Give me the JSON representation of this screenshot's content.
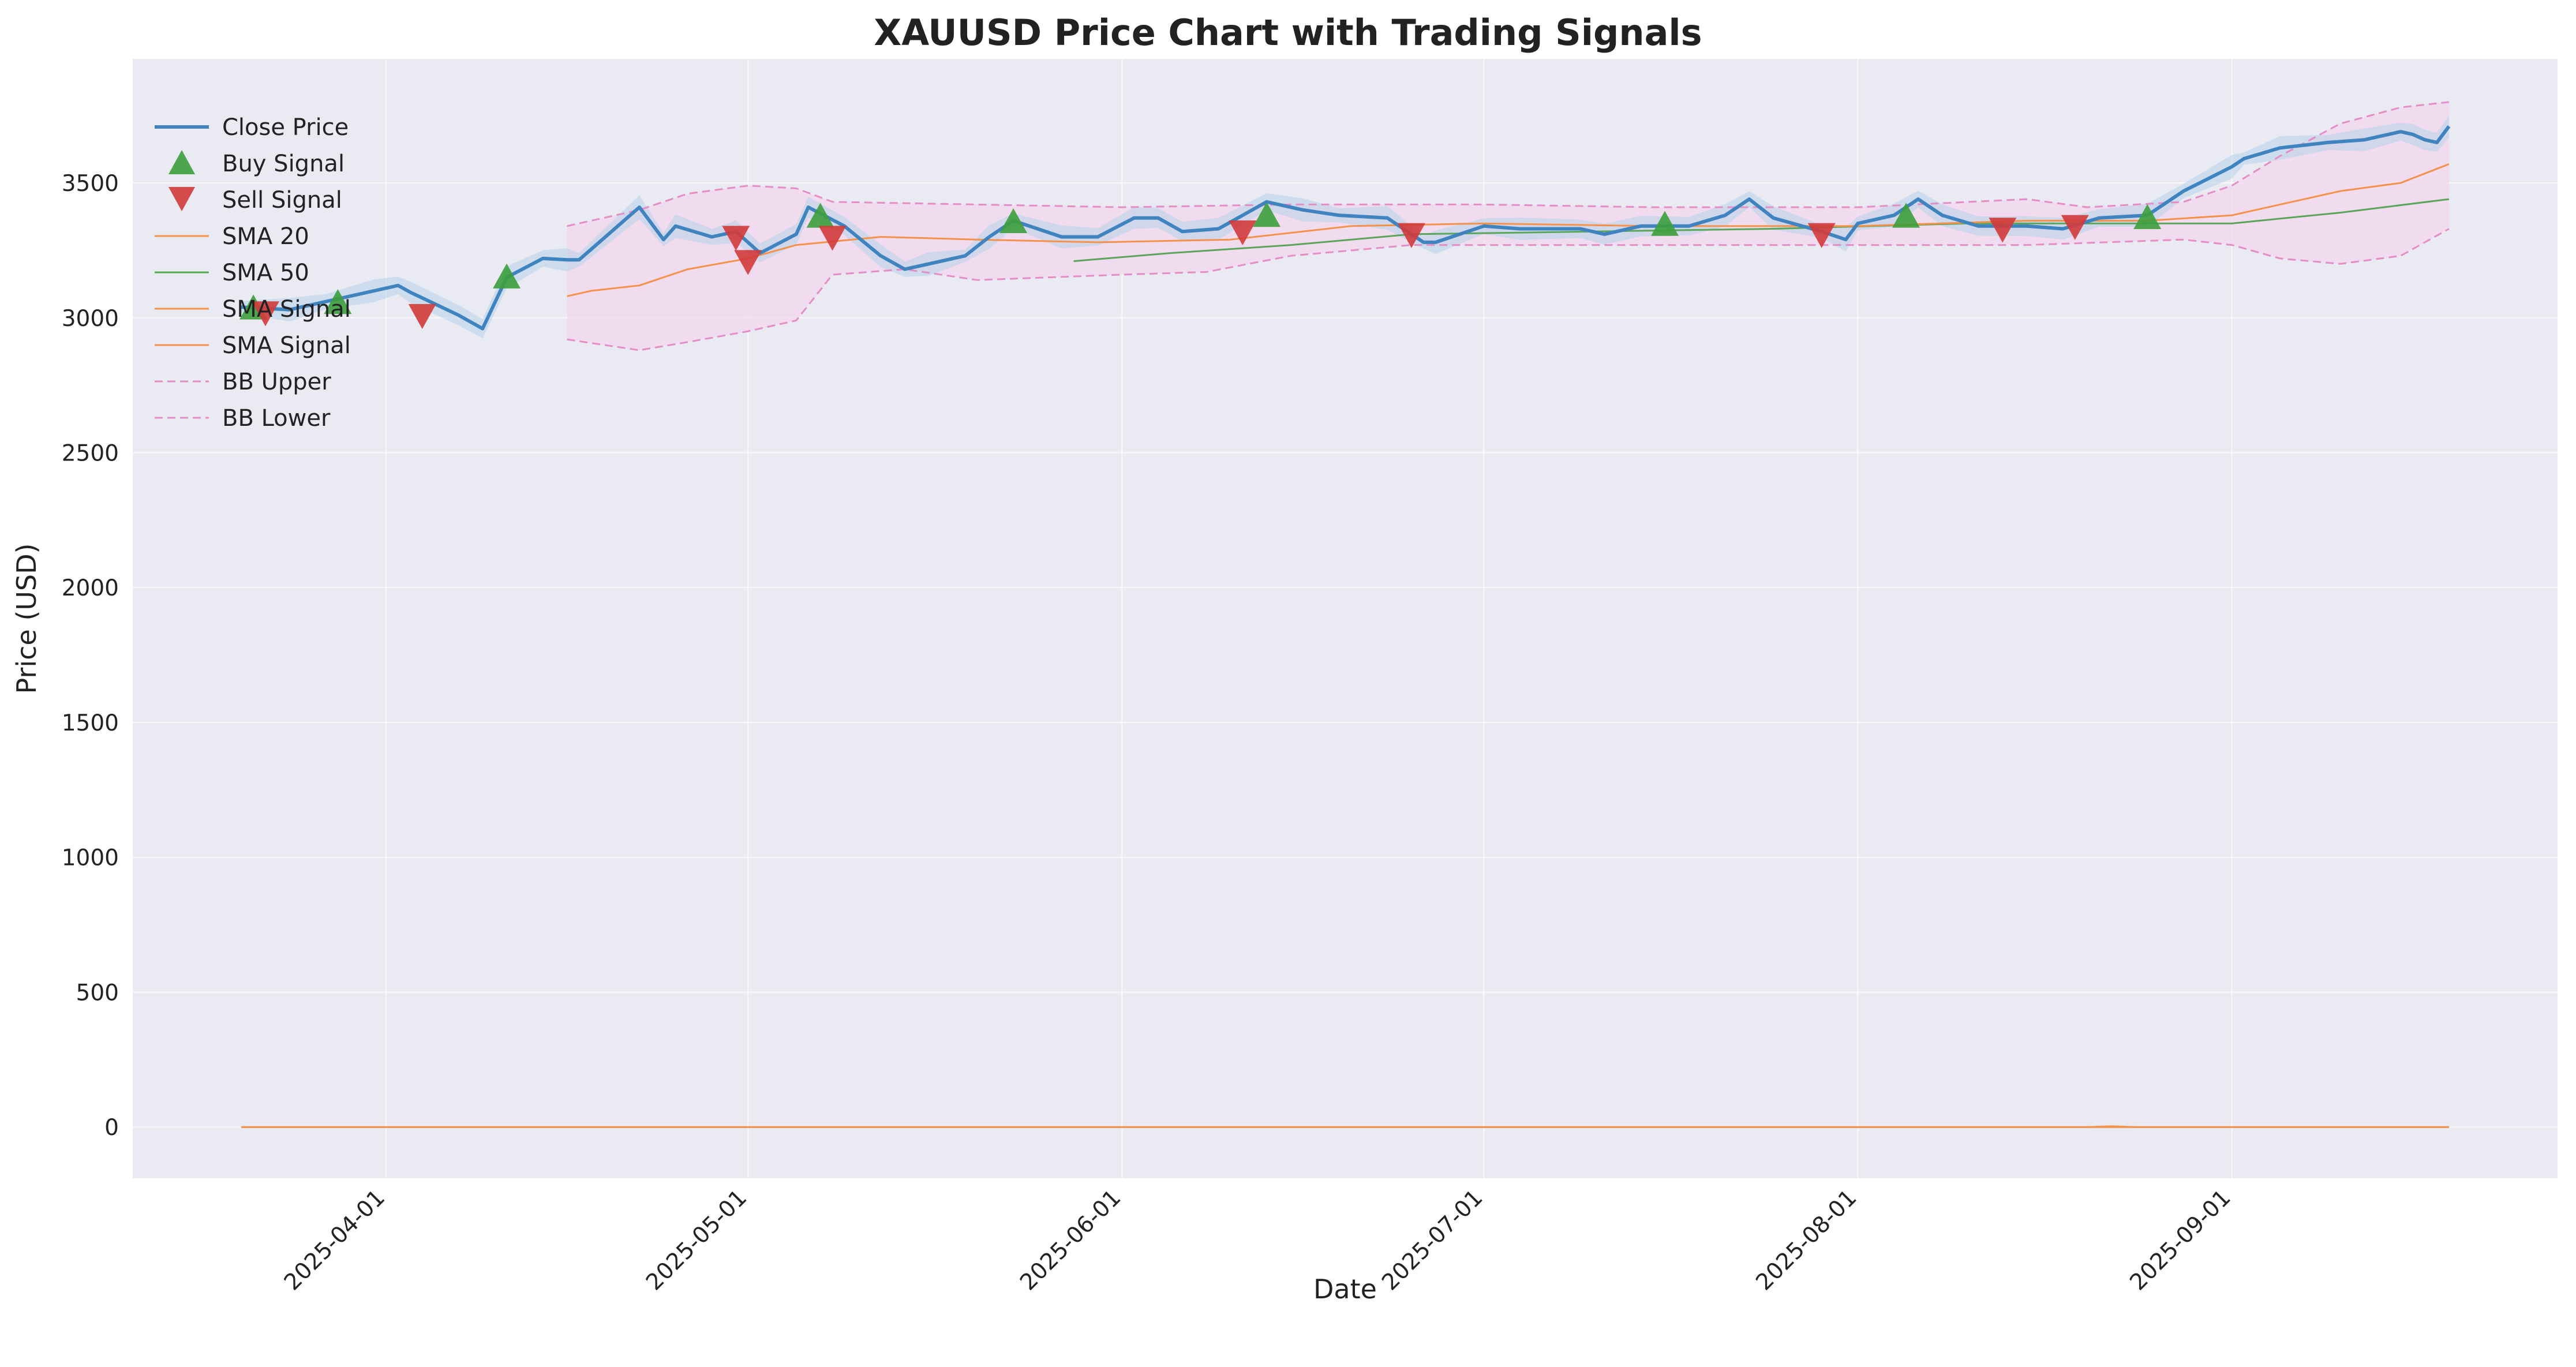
{
  "chart_data": {
    "type": "line",
    "title": "XAUUSD Price Chart with Trading Signals",
    "xlabel": "Date",
    "ylabel": "Price (USD)",
    "xlim": [
      "2025-03-11",
      "2025-09-28"
    ],
    "ylim": [
      -190,
      3960
    ],
    "grid": true,
    "legend_position": "upper-left",
    "x_ticks": [
      "2025-04-01",
      "2025-05-01",
      "2025-06-01",
      "2025-07-01",
      "2025-08-01",
      "2025-09-01"
    ],
    "y_ticks": [
      0,
      500,
      1000,
      1500,
      2000,
      2500,
      3000,
      3500
    ],
    "colors": {
      "plot_background": "#EAEAF2",
      "grid": "#FFFFFF",
      "close": "#3F83BF",
      "buy": "#3C9E3C",
      "sell": "#D13A3A",
      "sma20": "#F4914A",
      "sma50": "#5AA55A",
      "sma_signal": "#F4914A",
      "bb": "#E38EC7",
      "bb_fill": "#F2D7EC"
    },
    "close": {
      "name": "Close Price",
      "dates": [
        "2025-03-20",
        "2025-03-24",
        "2025-03-27",
        "2025-03-31",
        "2025-04-02",
        "2025-04-03",
        "2025-04-07",
        "2025-04-09",
        "2025-04-11",
        "2025-04-14",
        "2025-04-16",
        "2025-04-17",
        "2025-04-22",
        "2025-04-24",
        "2025-04-25",
        "2025-04-28",
        "2025-04-30",
        "2025-05-02",
        "2025-05-05",
        "2025-05-06",
        "2025-05-09",
        "2025-05-12",
        "2025-05-14",
        "2025-05-16",
        "2025-05-19",
        "2025-05-21",
        "2025-05-23",
        "2025-05-27",
        "2025-05-30",
        "2025-06-02",
        "2025-06-04",
        "2025-06-06",
        "2025-06-09",
        "2025-06-13",
        "2025-06-16",
        "2025-06-19",
        "2025-06-23",
        "2025-06-26",
        "2025-06-27",
        "2025-07-01",
        "2025-07-04",
        "2025-07-09",
        "2025-07-11",
        "2025-07-14",
        "2025-07-18",
        "2025-07-21",
        "2025-07-23",
        "2025-07-25",
        "2025-07-29",
        "2025-07-31",
        "2025-08-01",
        "2025-08-04",
        "2025-08-06",
        "2025-08-08",
        "2025-08-11",
        "2025-08-15",
        "2025-08-18",
        "2025-08-21",
        "2025-08-25",
        "2025-08-28",
        "2025-09-01",
        "2025-09-02",
        "2025-09-05",
        "2025-09-09",
        "2025-09-12",
        "2025-09-15",
        "2025-09-16",
        "2025-09-17",
        "2025-09-18",
        "2025-09-19"
      ],
      "values": [
        3040,
        3030,
        3060,
        3100,
        3120,
        3095,
        3010,
        2960,
        3150,
        3220,
        3215,
        3215,
        3410,
        3290,
        3340,
        3300,
        3320,
        3240,
        3310,
        3410,
        3340,
        3230,
        3180,
        3200,
        3230,
        3300,
        3360,
        3300,
        3300,
        3370,
        3370,
        3320,
        3330,
        3430,
        3400,
        3380,
        3370,
        3280,
        3280,
        3340,
        3330,
        3330,
        3310,
        3340,
        3340,
        3380,
        3440,
        3370,
        3320,
        3290,
        3350,
        3380,
        3440,
        3380,
        3340,
        3340,
        3330,
        3370,
        3380,
        3470,
        3560,
        3590,
        3630,
        3650,
        3660,
        3690,
        3680,
        3660,
        3650,
        3710
      ]
    },
    "buy_signals": {
      "name": "Buy Signal",
      "dates": [
        "2025-03-21",
        "2025-03-28",
        "2025-04-11",
        "2025-05-07",
        "2025-05-23",
        "2025-06-13",
        "2025-07-16",
        "2025-08-05",
        "2025-08-25"
      ],
      "values": [
        3035,
        3055,
        3150,
        3375,
        3355,
        3378,
        3345,
        3375,
        3370
      ]
    },
    "sell_signals": {
      "name": "Sell Signal",
      "dates": [
        "2025-03-22",
        "2025-04-04",
        "2025-04-30",
        "2025-05-01",
        "2025-05-08",
        "2025-06-11",
        "2025-06-25",
        "2025-07-29",
        "2025-08-13",
        "2025-08-19"
      ],
      "values": [
        3020,
        3010,
        3300,
        3210,
        3300,
        3320,
        3310,
        3310,
        3330,
        3340
      ]
    },
    "sma20": {
      "name": "SMA 20",
      "dates": [
        "2025-04-16",
        "2025-04-18",
        "2025-04-22",
        "2025-04-26",
        "2025-05-01",
        "2025-05-05",
        "2025-05-12",
        "2025-05-20",
        "2025-05-30",
        "2025-06-10",
        "2025-06-20",
        "2025-07-01",
        "2025-07-15",
        "2025-08-01",
        "2025-08-15",
        "2025-08-25",
        "2025-09-01",
        "2025-09-10",
        "2025-09-15",
        "2025-09-19"
      ],
      "values": [
        3080,
        3100,
        3120,
        3180,
        3220,
        3270,
        3300,
        3290,
        3280,
        3290,
        3340,
        3350,
        3340,
        3340,
        3360,
        3360,
        3380,
        3470,
        3500,
        3570
      ]
    },
    "sma50": {
      "name": "SMA 50",
      "dates": [
        "2025-05-28",
        "2025-06-05",
        "2025-06-15",
        "2025-06-25",
        "2025-07-10",
        "2025-07-25",
        "2025-08-10",
        "2025-08-25",
        "2025-09-01",
        "2025-09-10",
        "2025-09-19"
      ],
      "values": [
        3210,
        3240,
        3270,
        3310,
        3320,
        3330,
        3350,
        3350,
        3350,
        3390,
        3440
      ]
    },
    "sma_signal": {
      "name": "SMA Signal",
      "dates": [
        "2025-03-20",
        "2025-08-20",
        "2025-08-22",
        "2025-08-24",
        "2025-09-19"
      ],
      "values": [
        0,
        0,
        3,
        0,
        0
      ]
    },
    "sma_signal_2": {
      "name": "SMA Signal",
      "dates": [
        "2025-03-20",
        "2025-09-19"
      ],
      "values": [
        0,
        0
      ]
    },
    "bb_upper": {
      "name": "BB Upper",
      "dates": [
        "2025-04-16",
        "2025-04-22",
        "2025-04-26",
        "2025-05-01",
        "2025-05-05",
        "2025-05-08",
        "2025-05-20",
        "2025-06-01",
        "2025-06-15",
        "2025-07-01",
        "2025-07-15",
        "2025-08-01",
        "2025-08-15",
        "2025-08-20",
        "2025-08-28",
        "2025-09-01",
        "2025-09-05",
        "2025-09-10",
        "2025-09-15",
        "2025-09-19"
      ],
      "values": [
        3340,
        3400,
        3460,
        3490,
        3480,
        3430,
        3420,
        3410,
        3420,
        3420,
        3410,
        3410,
        3440,
        3410,
        3430,
        3490,
        3600,
        3720,
        3780,
        3800
      ]
    },
    "bb_lower": {
      "name": "BB Lower",
      "dates": [
        "2025-04-16",
        "2025-04-22",
        "2025-04-26",
        "2025-05-01",
        "2025-05-05",
        "2025-05-08",
        "2025-05-14",
        "2025-05-20",
        "2025-06-01",
        "2025-06-08",
        "2025-06-15",
        "2025-06-25",
        "2025-07-15",
        "2025-08-01",
        "2025-08-15",
        "2025-08-28",
        "2025-09-01",
        "2025-09-05",
        "2025-09-10",
        "2025-09-15",
        "2025-09-19"
      ],
      "values": [
        2920,
        2880,
        2910,
        2950,
        2990,
        3160,
        3180,
        3140,
        3160,
        3170,
        3230,
        3270,
        3270,
        3270,
        3270,
        3290,
        3270,
        3220,
        3200,
        3230,
        3330
      ]
    }
  }
}
